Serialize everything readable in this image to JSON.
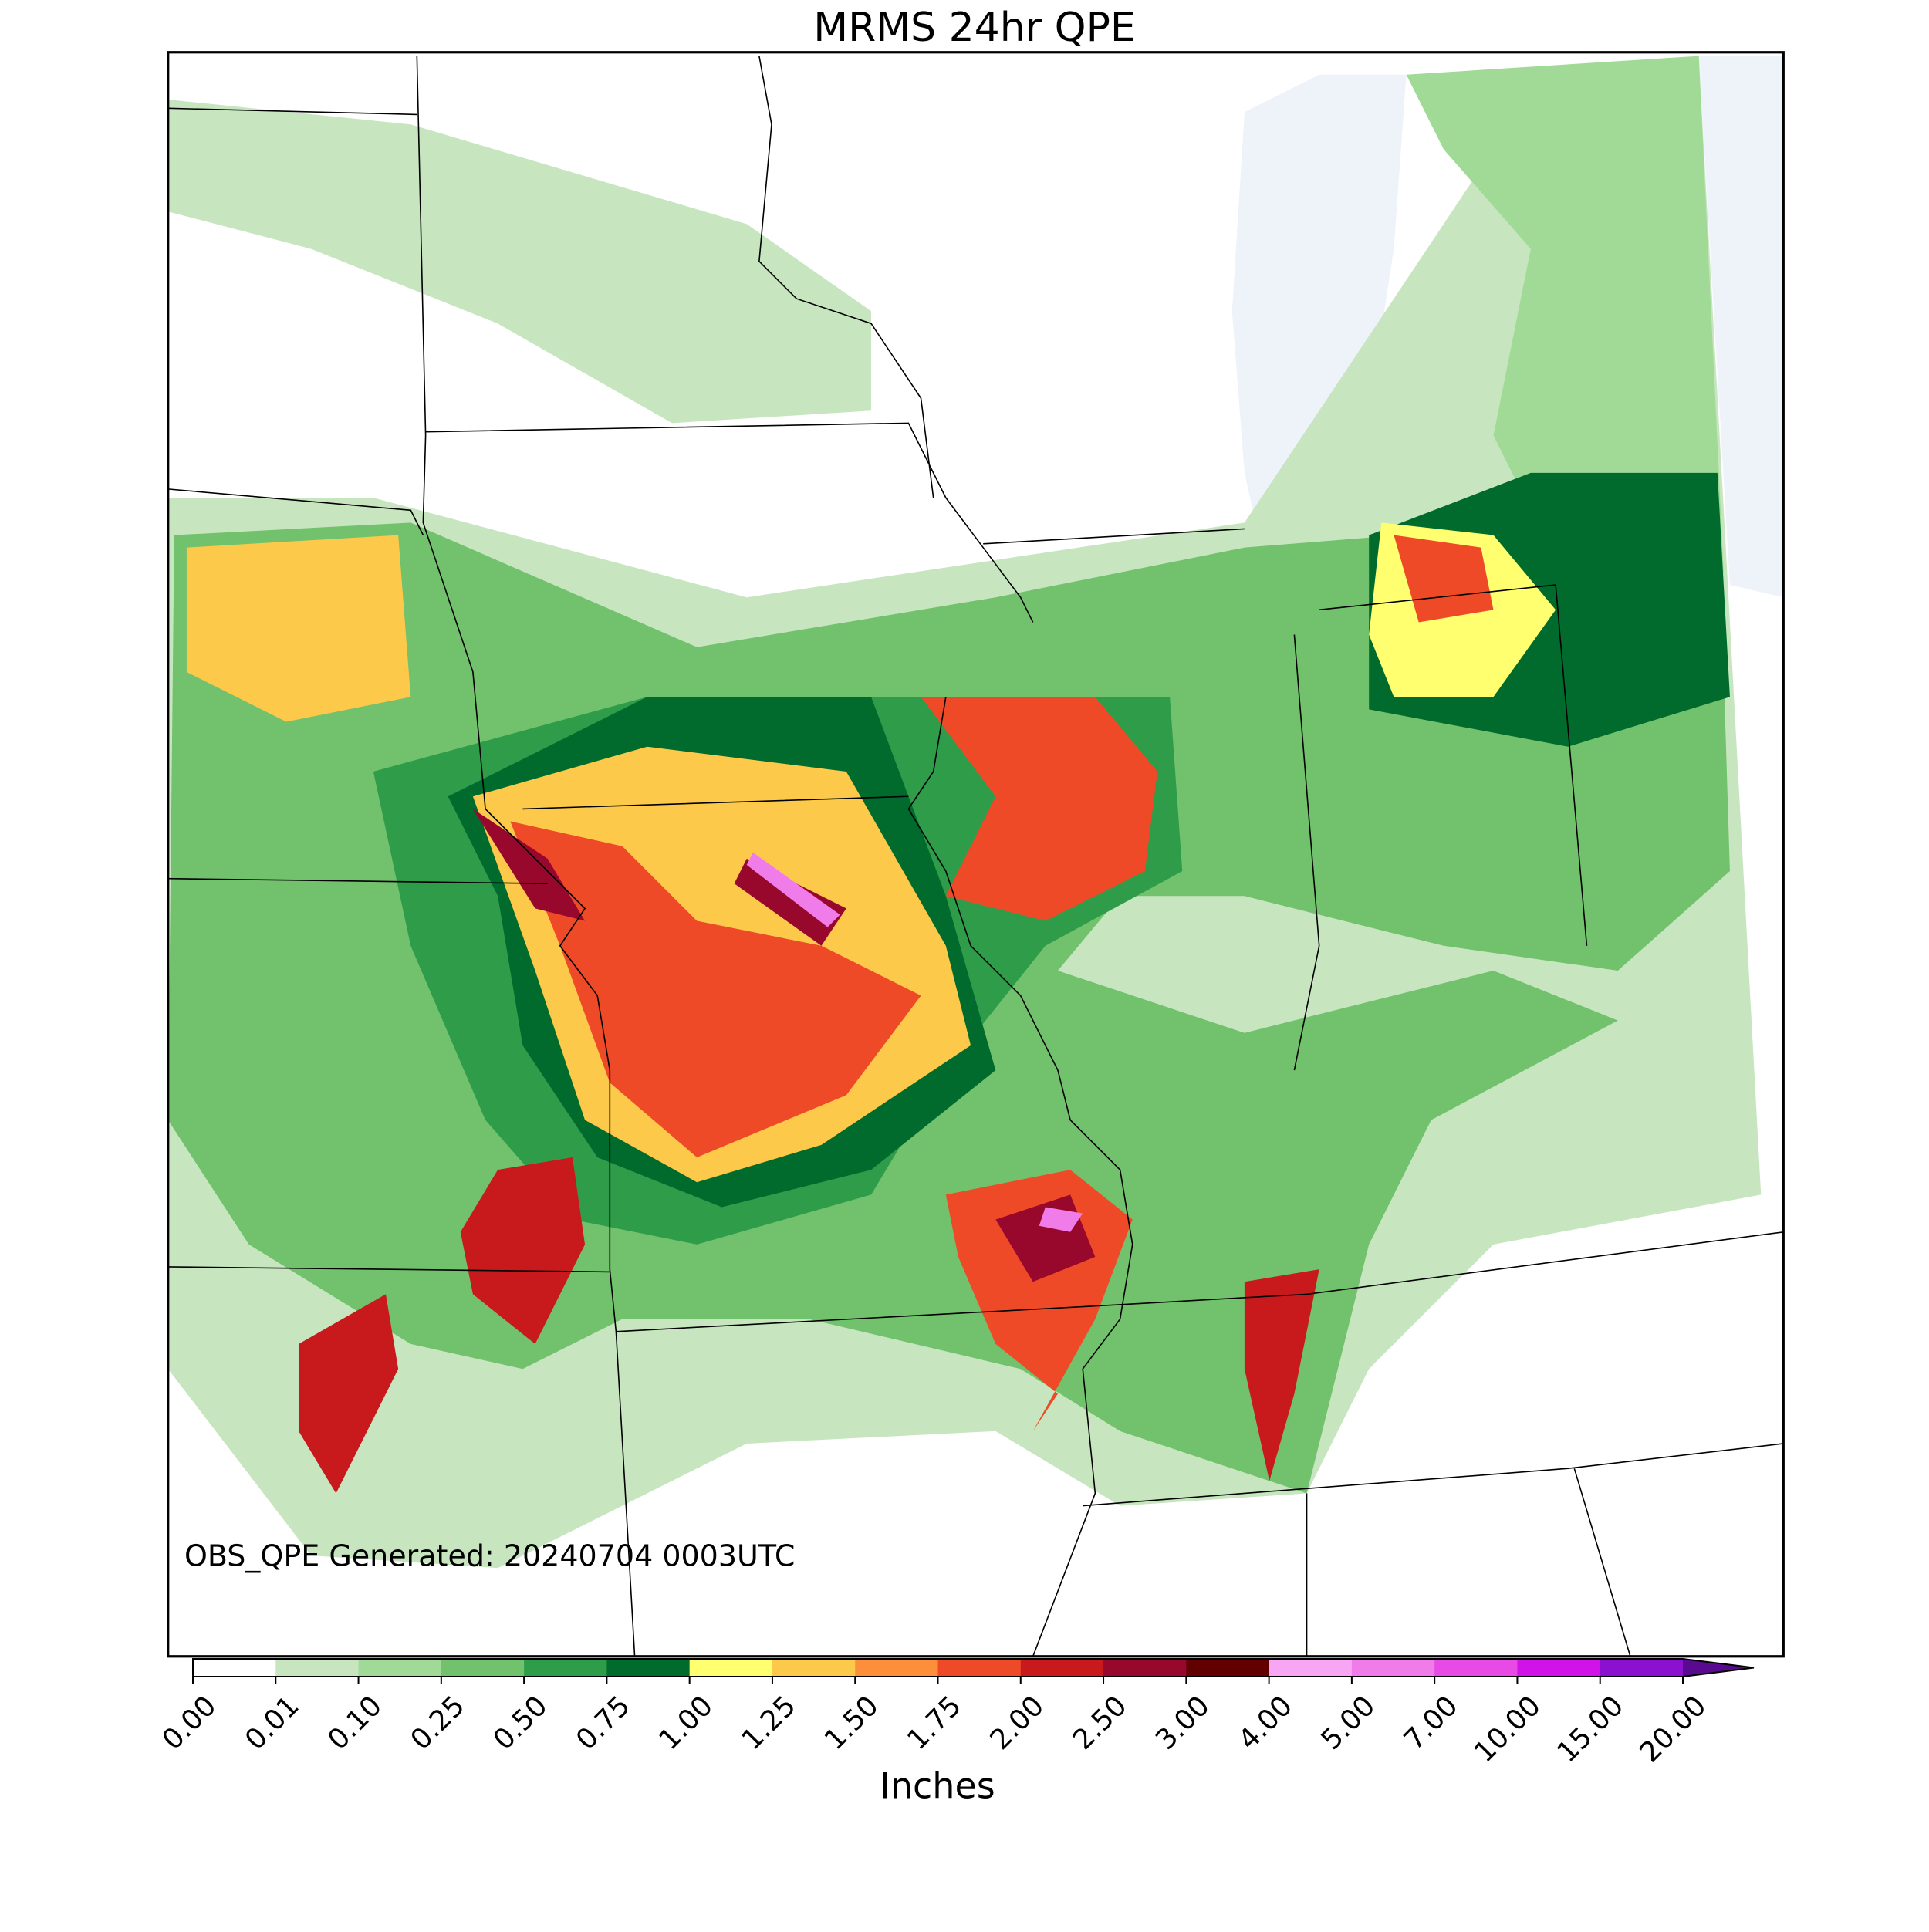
{
  "title": "MRMS 24hr QPE",
  "annotation": "OBS_QPE Generated: 20240704 0003UTC",
  "colorbar": {
    "label": "Inches",
    "ticks": [
      {
        "value": 0,
        "label": "0.00"
      },
      {
        "value": 0.01,
        "label": "0.01"
      },
      {
        "value": 0.1,
        "label": "0.10"
      },
      {
        "value": 0.25,
        "label": "0.25"
      },
      {
        "value": 0.5,
        "label": "0.50"
      },
      {
        "value": 0.75,
        "label": "0.75"
      },
      {
        "value": 1,
        "label": "1.00"
      },
      {
        "value": 1.25,
        "label": "1.25"
      },
      {
        "value": 1.5,
        "label": "1.50"
      },
      {
        "value": 1.75,
        "label": "1.75"
      },
      {
        "value": 2,
        "label": "2.00"
      },
      {
        "value": 2.5,
        "label": "2.50"
      },
      {
        "value": 3,
        "label": "3.00"
      },
      {
        "value": 4,
        "label": "4.00"
      },
      {
        "value": 5,
        "label": "5.00"
      },
      {
        "value": 7,
        "label": "7.00"
      },
      {
        "value": 10,
        "label": "10.00"
      },
      {
        "value": 15,
        "label": "15.00"
      },
      {
        "value": 20,
        "label": "20.00"
      }
    ],
    "colors": [
      "#ffffff",
      "#c7e6c0",
      "#a1da97",
      "#72c16d",
      "#2f9c4a",
      "#006b2d",
      "#ffff70",
      "#fcc94a",
      "#fd8f3a",
      "#ef4a28",
      "#c8191c",
      "#98082c",
      "#620000",
      "#f6a6f2",
      "#f07ce9",
      "#e84ae6",
      "#d112e9",
      "#8b10d0"
    ],
    "extend_color": "#5a0a8e"
  }
}
